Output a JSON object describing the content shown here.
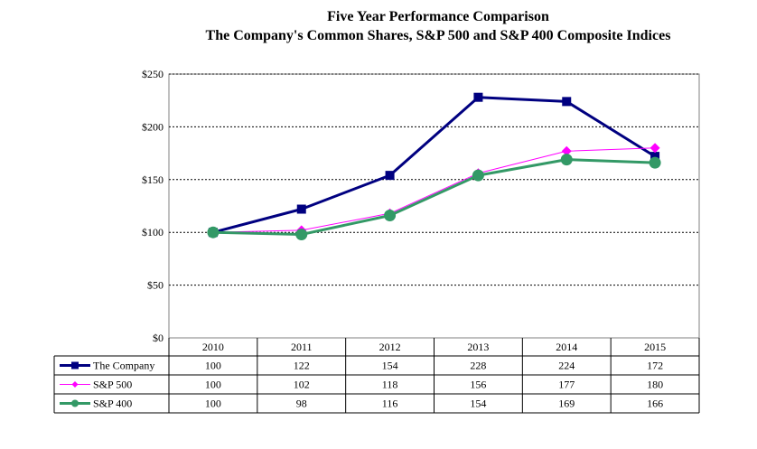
{
  "chart_data": {
    "type": "line",
    "title": "Five Year Performance Comparison",
    "subtitle": "The Company's Common Shares, S&P 500 and S&P 400 Composite Indices",
    "categories": [
      "2010",
      "2011",
      "2012",
      "2013",
      "2014",
      "2015"
    ],
    "y_ticks": [
      "$0",
      "$50",
      "$100",
      "$150",
      "$200",
      "$250"
    ],
    "ylim": [
      0,
      250
    ],
    "y_tick_step": 50,
    "grid": "horizontal dashed",
    "legend": "data-table",
    "series": [
      {
        "name": "The Company",
        "values": [
          100,
          122,
          154,
          228,
          224,
          172
        ],
        "color": "#000080",
        "marker": "square"
      },
      {
        "name": "S&P 500",
        "values": [
          100,
          102,
          118,
          156,
          177,
          180
        ],
        "color": "#ff00ff",
        "marker": "diamond"
      },
      {
        "name": "S&P 400",
        "values": [
          100,
          98,
          116,
          154,
          169,
          166
        ],
        "color": "#339966",
        "marker": "circle"
      }
    ]
  }
}
